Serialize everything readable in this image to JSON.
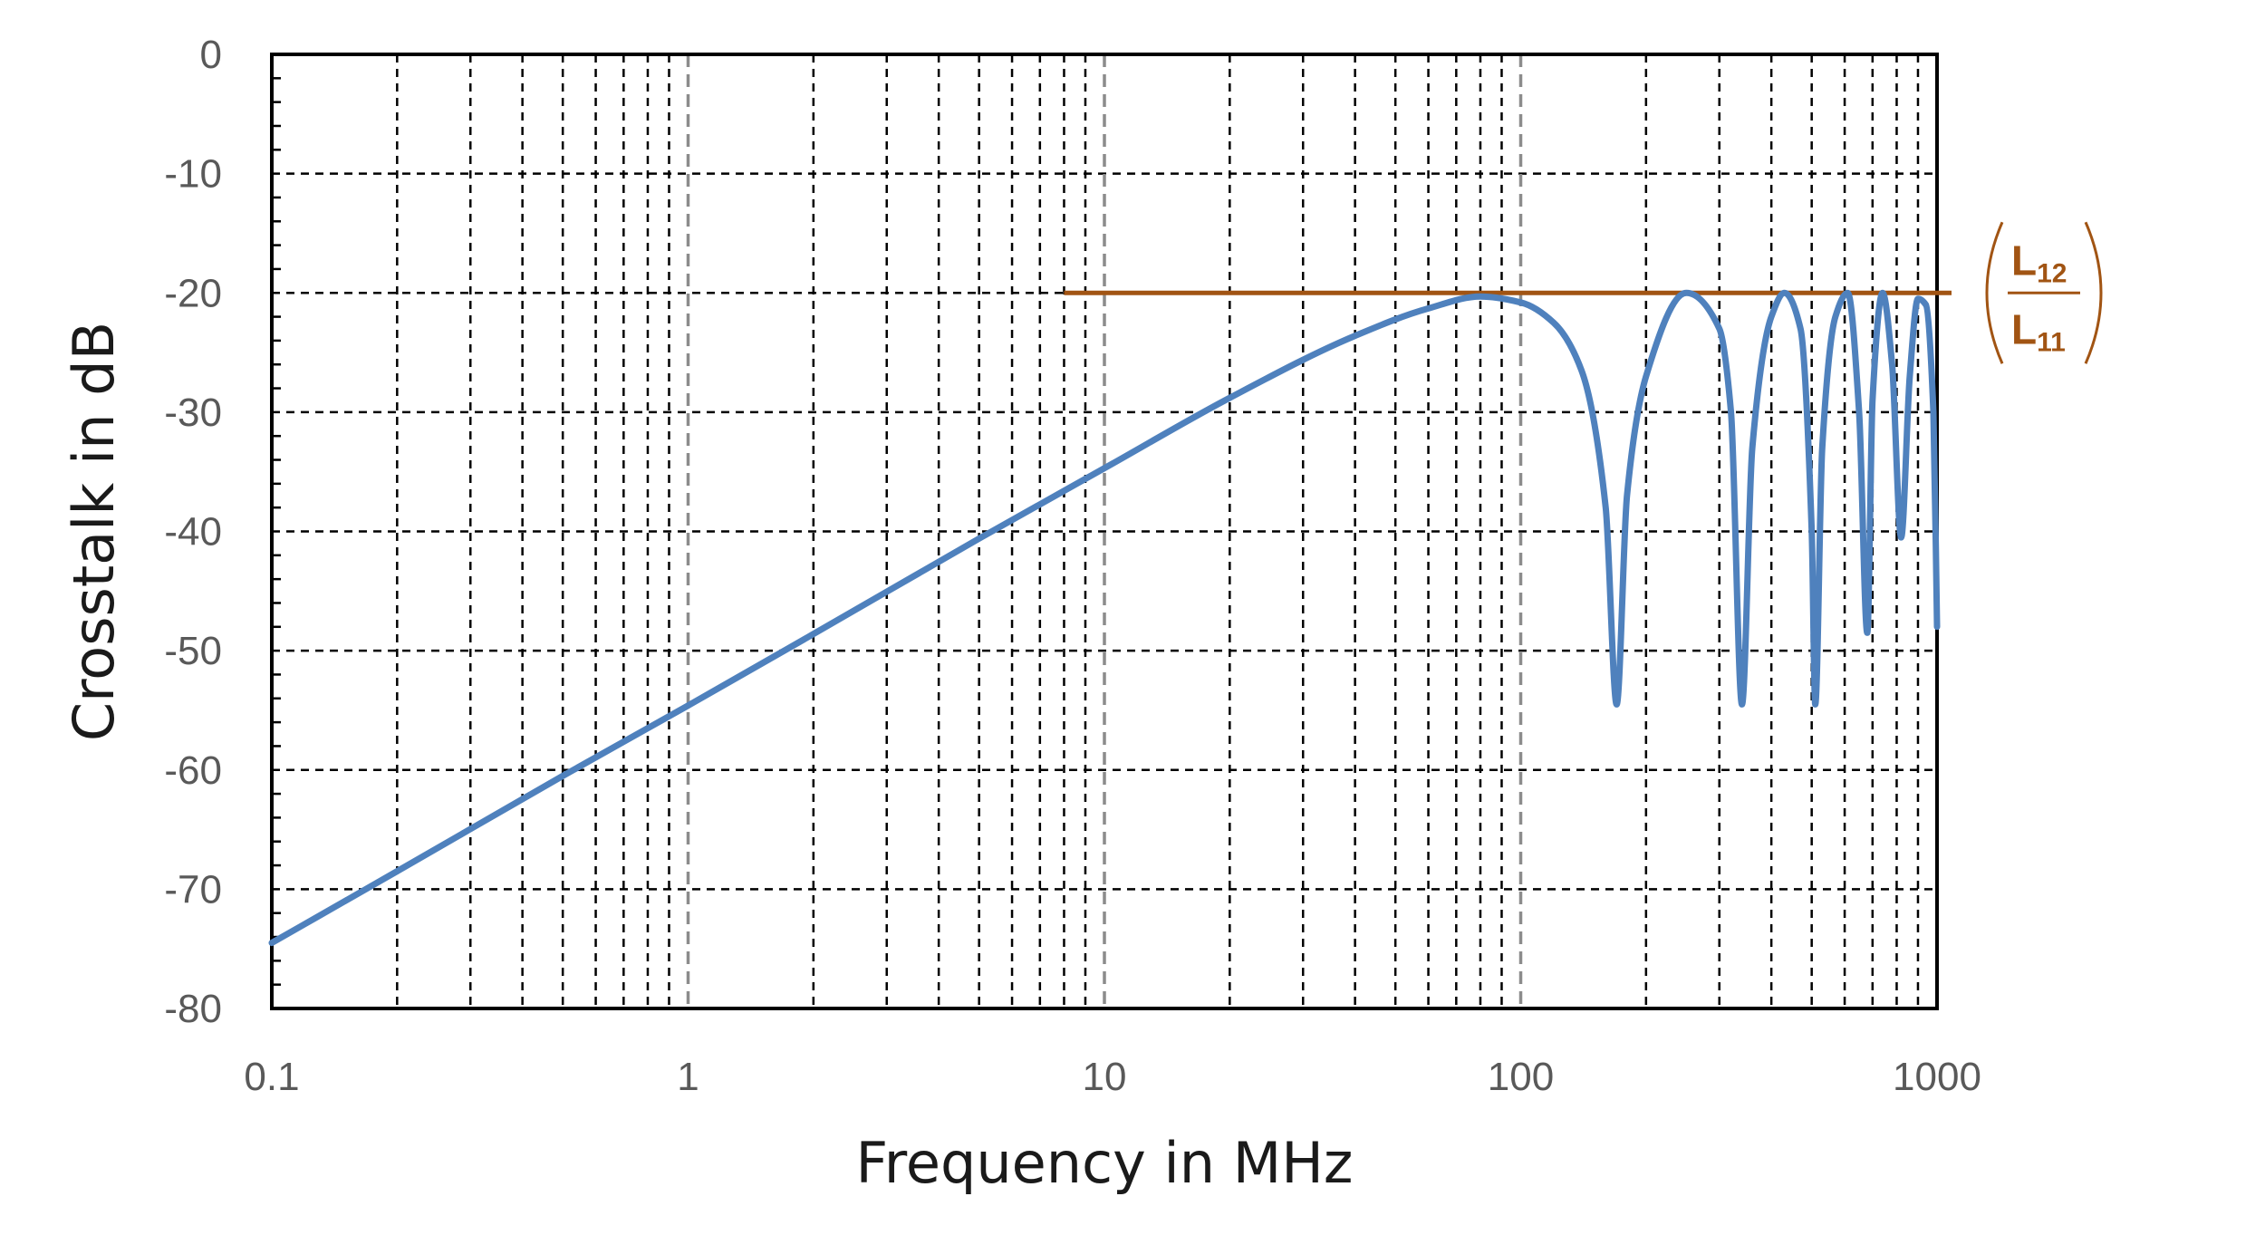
{
  "chart_data": {
    "type": "line",
    "xlabel": "Frequency in MHz",
    "ylabel": "Crosstalk in dB",
    "xscale": "log",
    "xlim": [
      0.1,
      1000
    ],
    "ylim": [
      -80,
      0
    ],
    "x_ticks": [
      "0.1",
      "1",
      "10",
      "100",
      "1000"
    ],
    "y_ticks": [
      "0",
      "-10",
      "-20",
      "-30",
      "-40",
      "-50",
      "-60",
      "-70",
      "-80"
    ],
    "grid": true,
    "series": [
      {
        "color": "#4f81bd",
        "x": [
          0.1,
          0.2,
          0.5,
          1,
          2,
          5,
          10,
          20,
          40,
          60,
          80,
          100,
          120,
          140,
          160,
          170,
          180,
          200,
          250,
          300,
          320,
          340,
          360,
          400,
          430,
          470,
          500,
          510,
          530,
          570,
          610,
          650,
          680,
          700,
          740,
          780,
          820,
          860,
          900,
          940,
          980,
          1000
        ],
        "y": [
          -74.5,
          -68.5,
          -60.5,
          -54.6,
          -48.6,
          -40.6,
          -34.7,
          -28.8,
          -23.6,
          -21.3,
          -20.3,
          -20.8,
          -22.5,
          -26.5,
          -38,
          -54.5,
          -37,
          -27,
          -20,
          -23,
          -30,
          -54.5,
          -33,
          -22,
          -20,
          -23,
          -40,
          -54.5,
          -33,
          -22,
          -20,
          -30,
          -48.5,
          -29,
          -20,
          -26,
          -40.5,
          -27,
          -20.5,
          -21,
          -30,
          -48
        ]
      }
    ],
    "reference_line": {
      "color": "#a15413",
      "y": -20,
      "x_from": 8,
      "x_to": 1000
    },
    "annotation": {
      "numerator": "L",
      "numerator_sub": "12",
      "denominator": "L",
      "denominator_sub": "11",
      "color": "#a15413"
    }
  }
}
